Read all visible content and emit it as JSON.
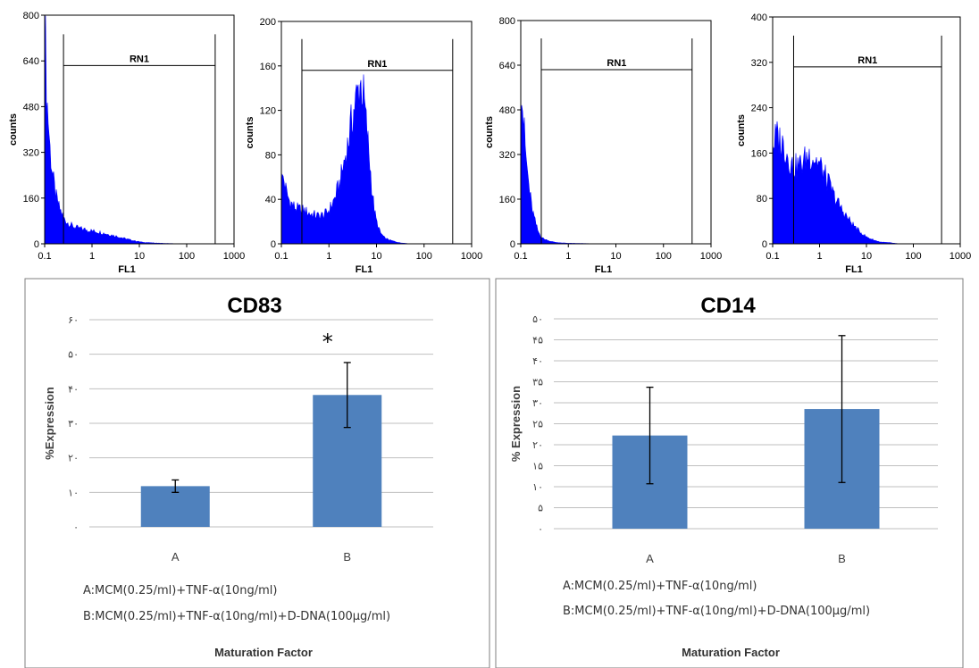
{
  "chart_data": [
    {
      "type": "area",
      "subtype": "flow-cytometry-histogram",
      "xlabel": "FL1",
      "ylabel": "counts",
      "x_scale": "log",
      "xlim": [
        0.1,
        1000
      ],
      "ylim": [
        0,
        800
      ],
      "x_tick_labels": [
        "0.1",
        "1",
        "10",
        "100",
        "1000"
      ],
      "y_tick_labels": [
        "0",
        "160",
        "320",
        "480",
        "640",
        "800"
      ],
      "gate": {
        "label": "RN1",
        "from": 0.25,
        "to": 400
      },
      "series": [
        {
          "x": [
            0.1,
            0.105,
            0.11,
            0.12,
            0.13,
            0.15,
            0.17,
            0.2,
            0.25,
            0.3,
            0.4,
            0.5,
            0.7,
            1,
            1.5,
            2,
            3,
            5,
            8,
            12,
            20,
            40,
            100,
            300,
            1000
          ],
          "y": [
            630,
            700,
            520,
            430,
            330,
            230,
            170,
            130,
            90,
            75,
            60,
            55,
            50,
            45,
            40,
            35,
            28,
            18,
            10,
            5,
            3,
            1,
            0,
            0,
            0
          ]
        }
      ]
    },
    {
      "type": "area",
      "subtype": "flow-cytometry-histogram",
      "xlabel": "FL1",
      "ylabel": "counts",
      "x_scale": "log",
      "xlim": [
        0.1,
        1000
      ],
      "ylim": [
        0,
        200
      ],
      "x_tick_labels": [
        "0.1",
        "1",
        "10",
        "100",
        "1000"
      ],
      "y_tick_labels": [
        "0",
        "40",
        "80",
        "120",
        "160",
        "200"
      ],
      "gate": {
        "label": "RN1",
        "from": 0.27,
        "to": 400
      },
      "series": [
        {
          "x": [
            0.1,
            0.11,
            0.13,
            0.15,
            0.2,
            0.3,
            0.4,
            0.6,
            0.8,
            1,
            1.3,
            1.7,
            2,
            2.5,
            3,
            3.5,
            4,
            4.5,
            5,
            5.5,
            6,
            7,
            8,
            9,
            10,
            12,
            15,
            20,
            30,
            50,
            100,
            1000
          ],
          "y": [
            55,
            60,
            45,
            38,
            32,
            30,
            27,
            25,
            26,
            30,
            40,
            55,
            70,
            90,
            110,
            125,
            135,
            145,
            140,
            128,
            110,
            80,
            50,
            30,
            20,
            10,
            5,
            3,
            1,
            0,
            0,
            0
          ]
        }
      ]
    },
    {
      "type": "area",
      "subtype": "flow-cytometry-histogram",
      "xlabel": "FL1",
      "ylabel": "counts",
      "x_scale": "log",
      "xlim": [
        0.1,
        1000
      ],
      "ylim": [
        0,
        800
      ],
      "x_tick_labels": [
        "0.1",
        "1",
        "10",
        "100",
        "1000"
      ],
      "y_tick_labels": [
        "0",
        "160",
        "320",
        "480",
        "640",
        "800"
      ],
      "gate": {
        "label": "RN1",
        "from": 0.27,
        "to": 400
      },
      "series": [
        {
          "x": [
            0.1,
            0.105,
            0.11,
            0.12,
            0.13,
            0.15,
            0.17,
            0.2,
            0.23,
            0.27,
            0.3,
            0.4,
            0.5,
            0.7,
            1,
            2,
            5,
            10,
            1000
          ],
          "y": [
            560,
            590,
            480,
            380,
            300,
            200,
            130,
            80,
            45,
            25,
            18,
            10,
            6,
            3,
            2,
            1,
            0,
            0,
            0
          ]
        }
      ]
    },
    {
      "type": "area",
      "subtype": "flow-cytometry-histogram",
      "xlabel": "FL1",
      "ylabel": "counts",
      "x_scale": "log",
      "xlim": [
        0.1,
        1000
      ],
      "ylim": [
        0,
        400
      ],
      "x_tick_labels": [
        "0.1",
        "1",
        "10",
        "100",
        "1000"
      ],
      "y_tick_labels": [
        "0",
        "80",
        "160",
        "240",
        "320",
        "400"
      ],
      "gate": {
        "label": "RN1",
        "from": 0.28,
        "to": 400
      },
      "series": [
        {
          "x": [
            0.1,
            0.12,
            0.15,
            0.18,
            0.2,
            0.25,
            0.3,
            0.4,
            0.5,
            0.6,
            0.8,
            1,
            1.3,
            1.7,
            2,
            3,
            4,
            5,
            7,
            10,
            15,
            20,
            30,
            50,
            100,
            1000
          ],
          "y": [
            170,
            190,
            180,
            170,
            160,
            140,
            135,
            140,
            150,
            158,
            150,
            140,
            120,
            100,
            85,
            60,
            45,
            35,
            22,
            12,
            6,
            3,
            2,
            0,
            0,
            0
          ]
        }
      ]
    },
    {
      "type": "bar",
      "title": "CD83",
      "categories": [
        "A",
        "B"
      ],
      "values": [
        11.8,
        38.2
      ],
      "errors": [
        1.8,
        9.4
      ],
      "significance": {
        "B": "*"
      },
      "ylim": [
        0,
        60
      ],
      "y_tick_labels": [
        "۰",
        "۱۰",
        "۲۰",
        "۳۰",
        "۴۰",
        "۵۰",
        "۶۰"
      ],
      "ylabel": "%Expression",
      "xlabel": "Maturation Factor",
      "grid": true,
      "notes": [
        "A:MCM(0.25/ml)+TNF-α(10ng/ml)",
        "B:MCM(0.25/ml)+TNF-α(10ng/ml)+D-DNA(100μg/ml)"
      ]
    },
    {
      "type": "bar",
      "title": "CD14",
      "categories": [
        "A",
        "B"
      ],
      "values": [
        22.2,
        28.5
      ],
      "errors": [
        11.5,
        17.5
      ],
      "ylim": [
        0,
        50
      ],
      "y_tick_labels": [
        "۰",
        "۵",
        "۱۰",
        "۱۵",
        "۲۰",
        "۲۵",
        "۳۰",
        "۳۵",
        "۴۰",
        "۴۵",
        "۵۰"
      ],
      "ylabel": "% Expression",
      "xlabel": "Maturation  Factor",
      "grid": true,
      "notes": [
        "A:MCM(0.25/ml)+TNF-α(10ng/ml)",
        "B:MCM(0.25/ml)+TNF-α(10ng/ml)+D-DNA(100μg/ml)"
      ]
    }
  ]
}
